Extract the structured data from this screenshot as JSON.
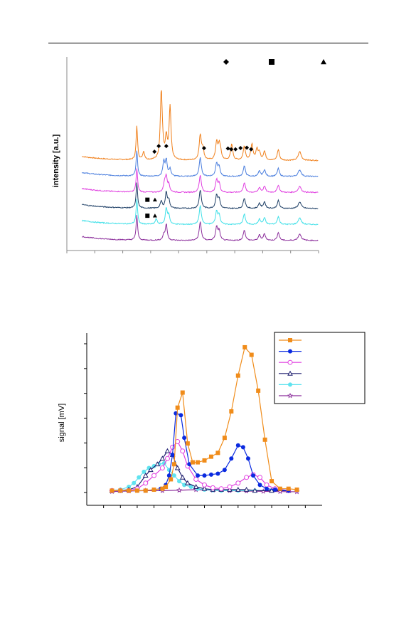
{
  "chart_data": [
    {
      "type": "line",
      "title": "",
      "xlabel": "",
      "ylabel": "intensity [a.u.]",
      "legend": {
        "placement": "top-right",
        "entries": [
          {
            "marker": "diamond",
            "label": ""
          },
          {
            "marker": "square",
            "label": ""
          },
          {
            "marker": "triangle",
            "label": ""
          }
        ]
      },
      "xlim": [
        0,
        100
      ],
      "x_ticks": [
        0,
        11.1,
        22.2,
        33.3,
        44.4,
        55.6,
        66.7,
        77.8,
        88.9,
        100
      ],
      "series": [
        {
          "color": "#f07f1a",
          "offset": 5,
          "scale": 1.0,
          "extra_peaks": [
            [
              30.5,
              2.3,
              0.45
            ],
            [
              37.5,
              19,
              0.45
            ],
            [
              38.0,
              2.0,
              0.45
            ],
            [
              41.0,
              15,
              0.45
            ],
            [
              54.0,
              3.0,
              0.5
            ],
            [
              61.0,
              2.2,
              0.5
            ],
            [
              65.5,
              4.5,
              0.5
            ],
            [
              73.5,
              4.5,
              0.5
            ],
            [
              75.5,
              3.0,
              0.5
            ]
          ]
        },
        {
          "color": "#4a7ede",
          "offset": 4,
          "scale": 0.75,
          "extra_peaks": [
            [
              38.5,
              4.0,
              0.45
            ],
            [
              41.0,
              2.0,
              0.45
            ]
          ]
        },
        {
          "color": "#e040e0",
          "offset": 3,
          "scale": 0.7,
          "extra_peaks": [
            [
              38.8,
              2.5,
              0.45
            ],
            [
              40.5,
              2.0,
              0.45
            ]
          ]
        },
        {
          "color": "#1e3f66",
          "offset": 2,
          "scale": 0.75,
          "extra_peaks": [
            [
              37.5,
              2.0,
              0.45
            ],
            [
              40.5,
              2.2,
              0.45
            ]
          ]
        },
        {
          "color": "#3fe0e8",
          "offset": 1,
          "scale": 0.75,
          "extra_peaks": [
            [
              35.5,
              1.5,
              0.45
            ],
            [
              40.5,
              2.5,
              0.45
            ]
          ]
        },
        {
          "color": "#8c2f9c",
          "offset": 0,
          "scale": 0.75,
          "extra_peaks": [
            [
              38.5,
              1.5,
              0.45
            ]
          ]
        }
      ],
      "base_peaks": [
        [
          27.8,
          9.5,
          0.35
        ],
        [
          39.5,
          6.0,
          0.45
        ],
        [
          53.0,
          7.0,
          0.5
        ],
        [
          59.5,
          5.0,
          0.5
        ],
        [
          60.5,
          3.5,
          0.45
        ],
        [
          70.5,
          4.0,
          0.5
        ],
        [
          76.5,
          2.0,
          0.5
        ],
        [
          78.5,
          2.5,
          0.5
        ],
        [
          84.0,
          3.0,
          0.5
        ],
        [
          92.5,
          2.5,
          0.7
        ]
      ],
      "annotations": [
        {
          "marker": "diamond",
          "points": [
            [
              36.5,
              5.9
            ],
            [
              39.5,
              5.9
            ],
            [
              34.8,
              5.55
            ],
            [
              54.5,
              5.77
            ],
            [
              64.0,
              5.75
            ],
            [
              65.3,
              5.7
            ],
            [
              69.0,
              5.78
            ],
            [
              71.5,
              5.8
            ],
            [
              67.0,
              5.7
            ],
            [
              73.2,
              5.7
            ]
          ]
        },
        {
          "marker": "square",
          "points": [
            [
              32.0,
              2.55
            ],
            [
              32.0,
              1.55
            ]
          ]
        },
        {
          "marker": "triangle",
          "points": [
            [
              35.0,
              2.55
            ],
            [
              35.0,
              1.55
            ]
          ]
        }
      ]
    },
    {
      "type": "line",
      "title": "",
      "xlabel": "",
      "ylabel": "signal [mV]",
      "xlim": [
        0,
        140
      ],
      "ylim": [
        0,
        100
      ],
      "x_ticks": [
        10,
        20,
        30,
        40,
        50,
        60,
        70,
        80,
        90,
        100,
        110,
        120,
        130
      ],
      "y_ticks": [
        0,
        10,
        20,
        30,
        40,
        50,
        60,
        70,
        80,
        90,
        100
      ],
      "grid": false,
      "legend": {
        "placement": "top-right",
        "entries": [
          {
            "color": "#f08c1a",
            "marker": "square-filled",
            "label": ""
          },
          {
            "color": "#0a2ae0",
            "marker": "circle-filled",
            "label": ""
          },
          {
            "color": "#e040e0",
            "marker": "circle-open",
            "label": ""
          },
          {
            "color": "#1e1e6e",
            "marker": "triangle-open",
            "label": ""
          },
          {
            "color": "#5fe3ef",
            "marker": "circle-filled",
            "label": ""
          },
          {
            "color": "#8c2f9c",
            "marker": "star-open",
            "label": ""
          }
        ]
      },
      "series": [
        {
          "color": "#f08c1a",
          "marker": "square-filled",
          "x": [
            15,
            20,
            25,
            30,
            35,
            40,
            45,
            47,
            50,
            52,
            54,
            57,
            60,
            63,
            66,
            70,
            74,
            78,
            82,
            86,
            90,
            94,
            98,
            102,
            106,
            110,
            115,
            120,
            125
          ],
          "y": [
            1,
            1,
            1,
            1,
            1,
            1.5,
            2,
            3,
            7,
            15,
            45,
            53,
            26,
            16,
            16,
            17,
            19,
            21,
            29,
            43,
            62,
            77,
            73,
            54,
            28,
            6,
            2,
            2,
            1.5
          ]
        },
        {
          "color": "#0a2ae0",
          "marker": "circle-filled",
          "x": [
            15,
            20,
            25,
            30,
            35,
            40,
            44,
            47,
            49,
            51,
            53,
            56,
            58,
            61,
            66,
            70,
            74,
            78,
            82,
            86,
            90,
            93,
            96,
            99,
            103,
            107,
            112,
            120
          ],
          "y": [
            1,
            1,
            1,
            1,
            1,
            1.5,
            2,
            4,
            9,
            20,
            42,
            41,
            29,
            15,
            9,
            9,
            9.5,
            10,
            12,
            18,
            25,
            24,
            18,
            9,
            4,
            2,
            1.5,
            1
          ]
        },
        {
          "color": "#e040e0",
          "marker": "circle-open",
          "x": [
            15,
            20,
            25,
            30,
            35,
            40,
            45,
            48,
            51,
            54,
            57,
            60,
            65,
            70,
            75,
            80,
            85,
            90,
            95,
            99,
            103,
            107,
            112,
            120
          ],
          "y": [
            1,
            1,
            1,
            2,
            5,
            9,
            13,
            18,
            24,
            27,
            22,
            14,
            7,
            4,
            2.5,
            2,
            3,
            5,
            8,
            9.5,
            8,
            4,
            2,
            1
          ]
        },
        {
          "color": "#1e1e6e",
          "marker": "triangle-open",
          "x": [
            15,
            20,
            25,
            30,
            35,
            38,
            42,
            45,
            48,
            51,
            54,
            57,
            60,
            65,
            70,
            75,
            80,
            85,
            90,
            95,
            100,
            110,
            120
          ],
          "y": [
            1,
            1,
            1.5,
            3,
            9,
            12,
            15,
            18,
            22,
            20,
            13,
            8,
            5,
            3,
            2,
            1.5,
            1.5,
            1.5,
            1.5,
            1.5,
            1,
            1,
            1
          ]
        },
        {
          "color": "#5fe3ef",
          "marker": "circle-filled",
          "x": [
            15,
            20,
            25,
            28,
            31,
            34,
            37,
            40,
            43,
            46,
            49,
            52,
            55,
            58,
            62,
            66,
            70,
            75,
            80,
            90,
            100,
            110,
            120
          ],
          "y": [
            1,
            1.5,
            3,
            5,
            8,
            11,
            13,
            14,
            15,
            15.5,
            12,
            9,
            6,
            4,
            3,
            2,
            1.5,
            1.2,
            1,
            1,
            1,
            1,
            1
          ]
        },
        {
          "color": "#8c2f9c",
          "marker": "star-open",
          "x": [
            15,
            25,
            35,
            45,
            55,
            65,
            75,
            85,
            95,
            105,
            115,
            125
          ],
          "y": [
            0.5,
            0.8,
            1,
            1,
            1.2,
            1.5,
            1.2,
            1,
            0.8,
            0.6,
            0.5,
            0.4
          ]
        }
      ]
    }
  ]
}
